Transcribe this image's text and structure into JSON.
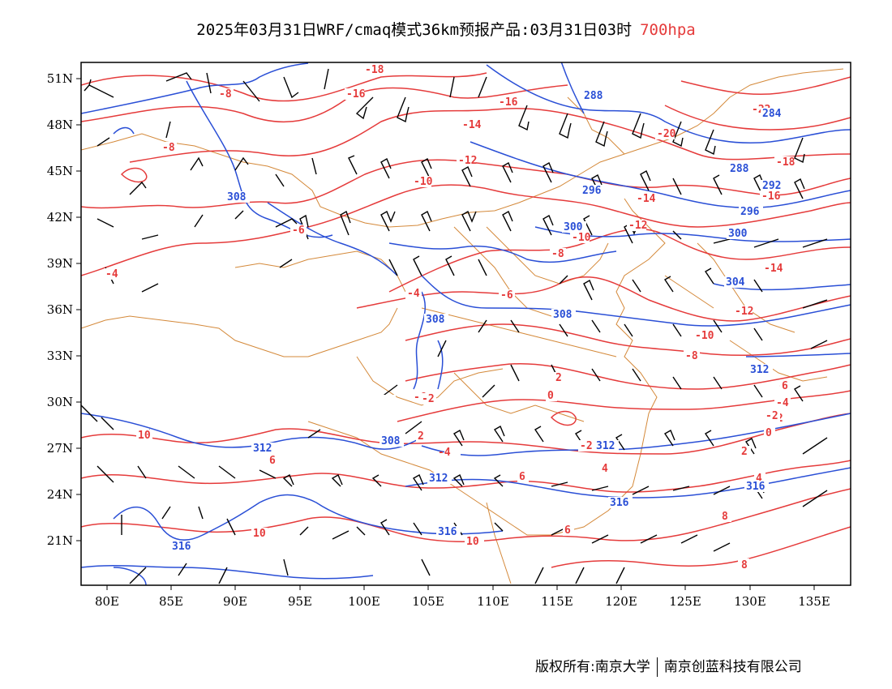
{
  "header": {
    "title": "2025年03月31日WRF/cmaq模式36km预报产品:03月31日03时",
    "level": "700hpa"
  },
  "axes": {
    "lat_labels": [
      "51N",
      "48N",
      "45N",
      "42N",
      "39N",
      "36N",
      "33N",
      "30N",
      "27N",
      "24N",
      "21N"
    ],
    "lon_labels": [
      "80E",
      "85E",
      "90E",
      "95E",
      "100E",
      "105E",
      "110E",
      "115E",
      "120E",
      "125E",
      "130E",
      "135E"
    ]
  },
  "colors": {
    "temperature_contour": "#e53b3b",
    "height_contour": "#2a4fd6",
    "border": "#d4893a",
    "wind_barb": "#000000"
  },
  "temperature_labels": [
    "-18",
    "-16",
    "-16",
    "-14",
    "-12",
    "-10",
    "-8",
    "-8",
    "-6",
    "-4",
    "-4",
    "-6",
    "-14",
    "-12",
    "-10",
    "-8",
    "-6",
    "-4",
    "-2",
    "0",
    "2",
    "-2",
    "-2",
    "2",
    "4",
    "8",
    "6",
    "6",
    "10",
    "10",
    "10",
    "6",
    "8",
    "-22",
    "-20",
    "-18",
    "-16",
    "-14",
    "-12",
    "-10",
    "-8",
    "-6",
    "-4",
    "-2",
    "0",
    "2",
    "4",
    "6",
    "8"
  ],
  "height_labels": [
    "288",
    "284",
    "288",
    "292",
    "296",
    "296",
    "300",
    "300",
    "304",
    "308",
    "308",
    "308",
    "312",
    "312",
    "312",
    "316",
    "316",
    "316",
    "316",
    "312",
    "308"
  ],
  "footer": {
    "left": "版权所有:南京大学",
    "right": "南京创蓝科技有限公司"
  }
}
